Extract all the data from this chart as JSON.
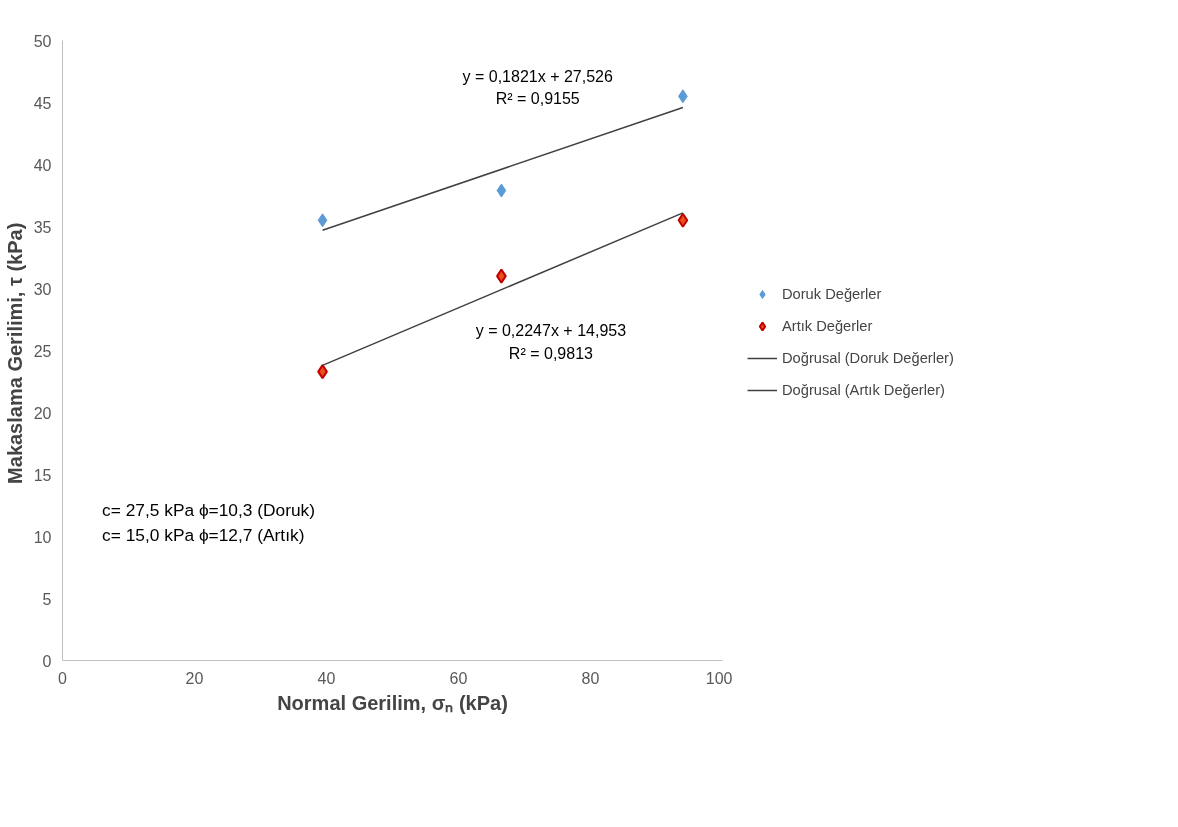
{
  "chart_data": {
    "type": "scatter",
    "xlabel": "Normal Gerilim, σₙ (kPa)",
    "ylabel": "Makaslama Gerilimi,  τ (kPa)",
    "xlim": [
      0,
      100
    ],
    "xticks": [
      0,
      20,
      40,
      60,
      80,
      100
    ],
    "ylim": [
      0,
      50
    ],
    "yticks": [
      0,
      5,
      10,
      15,
      20,
      25,
      30,
      35,
      40,
      45,
      50
    ],
    "grid": false,
    "legend": "right",
    "series": [
      {
        "name": "Doruk Değerler",
        "marker": "diamond",
        "color": "#5b9bd5",
        "x": [
          39.4,
          66.5,
          94
        ],
        "values": [
          35.5,
          37.9,
          45.5
        ]
      },
      {
        "name": "Artık Değerler",
        "marker": "diamond",
        "color": "#e8501e",
        "x": [
          39.4,
          66.5,
          94
        ],
        "values": [
          23.3,
          31.0,
          35.5
        ]
      },
      {
        "name": "Doğrusal (Doruk Değerler)",
        "type": "line",
        "color": "#404040",
        "x": [
          39.4,
          94
        ],
        "values": [
          34.7,
          44.6
        ]
      },
      {
        "name": "Doğrusal (Artık Değerler)",
        "type": "line",
        "color": "#404040",
        "x": [
          39.4,
          94
        ],
        "values": [
          23.8,
          36.1
        ]
      }
    ],
    "annotations": [
      "y = 0,1821x + 27,526",
      "R² = 0,9155",
      "y = 0,2247x + 14,953",
      "R² = 0,9813",
      "c= 27,5 kPa ϕ=10,3 (Doruk)",
      "c= 15,0 kPa ϕ=12,7 (Artık)"
    ]
  }
}
